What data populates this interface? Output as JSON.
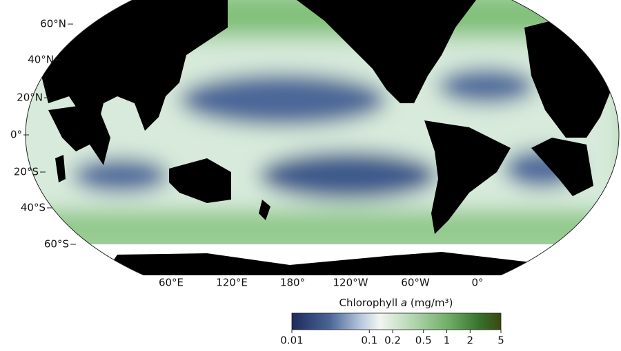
{
  "map": {
    "lat_labels": [
      "60°N",
      "40°N",
      "20°N",
      "0°",
      "20°S",
      "40°S",
      "60°S"
    ],
    "lon_labels": [
      "60°E",
      "120°E",
      "180°",
      "120°W",
      "60°W",
      "0°"
    ]
  },
  "colorbar": {
    "title": [
      "Chlorophyll",
      "a",
      "(mg/m³)"
    ],
    "log_scale": true,
    "lim": [
      0.01,
      5
    ],
    "ticks": [
      0.01,
      0.1,
      0.2,
      0.5,
      1,
      2,
      5
    ]
  }
}
